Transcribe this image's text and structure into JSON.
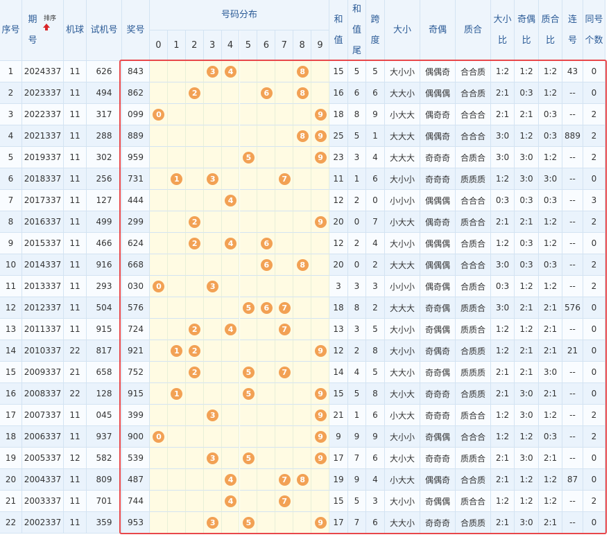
{
  "header": {
    "columns": [
      "序号",
      "期号",
      "机球",
      "试机号",
      "奖号",
      "和值",
      "和值尾",
      "跨度",
      "大小",
      "奇偶",
      "质合",
      "大小比",
      "奇偶比",
      "质合比",
      "连号",
      "同号个数"
    ],
    "sort": "排序",
    "dist_title": "号码分布",
    "digits": [
      "0",
      "1",
      "2",
      "3",
      "4",
      "5",
      "6",
      "7",
      "8",
      "9"
    ]
  },
  "table": {
    "rows": [
      {
        "cells": [
          "1",
          "2024337",
          "11",
          "626",
          "843",
          "15",
          "5",
          "5",
          "大小小",
          "偶偶奇",
          "合合质",
          "1:2",
          "1:2",
          "1:2",
          "43",
          "0"
        ],
        "balls": [
          "3",
          "4",
          "8"
        ]
      },
      {
        "cells": [
          "2",
          "2023337",
          "11",
          "494",
          "862",
          "16",
          "6",
          "6",
          "大大小",
          "偶偶偶",
          "合合质",
          "2:1",
          "0:3",
          "1:2",
          "--",
          "0"
        ],
        "balls": [
          "2",
          "6",
          "8"
        ]
      },
      {
        "cells": [
          "3",
          "2022337",
          "11",
          "317",
          "099",
          "18",
          "8",
          "9",
          "小大大",
          "偶奇奇",
          "合合合",
          "2:1",
          "2:1",
          "0:3",
          "--",
          "2"
        ],
        "balls": [
          "0",
          "9"
        ]
      },
      {
        "cells": [
          "4",
          "2021337",
          "11",
          "288",
          "889",
          "25",
          "5",
          "1",
          "大大大",
          "偶偶奇",
          "合合合",
          "3:0",
          "1:2",
          "0:3",
          "889",
          "2"
        ],
        "balls": [
          "8",
          "9"
        ]
      },
      {
        "cells": [
          "5",
          "2019337",
          "11",
          "302",
          "959",
          "23",
          "3",
          "4",
          "大大大",
          "奇奇奇",
          "合质合",
          "3:0",
          "3:0",
          "1:2",
          "--",
          "2"
        ],
        "balls": [
          "5",
          "9"
        ]
      },
      {
        "cells": [
          "6",
          "2018337",
          "11",
          "256",
          "731",
          "11",
          "1",
          "6",
          "大小小",
          "奇奇奇",
          "质质质",
          "1:2",
          "3:0",
          "3:0",
          "--",
          "0"
        ],
        "balls": [
          "1",
          "3",
          "7"
        ]
      },
      {
        "cells": [
          "7",
          "2017337",
          "11",
          "127",
          "444",
          "12",
          "2",
          "0",
          "小小小",
          "偶偶偶",
          "合合合",
          "0:3",
          "0:3",
          "0:3",
          "--",
          "3"
        ],
        "balls": [
          "4"
        ]
      },
      {
        "cells": [
          "8",
          "2016337",
          "11",
          "499",
          "299",
          "20",
          "0",
          "7",
          "小大大",
          "偶奇奇",
          "质合合",
          "2:1",
          "2:1",
          "1:2",
          "--",
          "2"
        ],
        "balls": [
          "2",
          "9"
        ]
      },
      {
        "cells": [
          "9",
          "2015337",
          "11",
          "466",
          "624",
          "12",
          "2",
          "4",
          "大小小",
          "偶偶偶",
          "合质合",
          "1:2",
          "0:3",
          "1:2",
          "--",
          "0"
        ],
        "balls": [
          "2",
          "4",
          "6"
        ]
      },
      {
        "cells": [
          "10",
          "2014337",
          "11",
          "916",
          "668",
          "20",
          "0",
          "2",
          "大大大",
          "偶偶偶",
          "合合合",
          "3:0",
          "0:3",
          "0:3",
          "--",
          "2"
        ],
        "balls": [
          "6",
          "8"
        ]
      },
      {
        "cells": [
          "11",
          "2013337",
          "11",
          "293",
          "030",
          "3",
          "3",
          "3",
          "小小小",
          "偶奇偶",
          "合质合",
          "0:3",
          "1:2",
          "1:2",
          "--",
          "2"
        ],
        "balls": [
          "0",
          "3"
        ]
      },
      {
        "cells": [
          "12",
          "2012337",
          "11",
          "504",
          "576",
          "18",
          "8",
          "2",
          "大大大",
          "奇奇偶",
          "质质合",
          "3:0",
          "2:1",
          "2:1",
          "576",
          "0"
        ],
        "balls": [
          "5",
          "6",
          "7"
        ]
      },
      {
        "cells": [
          "13",
          "2011337",
          "11",
          "915",
          "724",
          "13",
          "3",
          "5",
          "大小小",
          "奇偶偶",
          "质质合",
          "1:2",
          "1:2",
          "2:1",
          "--",
          "0"
        ],
        "balls": [
          "2",
          "4",
          "7"
        ]
      },
      {
        "cells": [
          "14",
          "2010337",
          "22",
          "817",
          "921",
          "12",
          "2",
          "8",
          "大小小",
          "奇偶奇",
          "合质质",
          "1:2",
          "2:1",
          "2:1",
          "21",
          "0"
        ],
        "balls": [
          "1",
          "2",
          "9"
        ]
      },
      {
        "cells": [
          "15",
          "2009337",
          "21",
          "658",
          "752",
          "14",
          "4",
          "5",
          "大大小",
          "奇奇偶",
          "质质质",
          "2:1",
          "2:1",
          "3:0",
          "--",
          "0"
        ],
        "balls": [
          "2",
          "5",
          "7"
        ]
      },
      {
        "cells": [
          "16",
          "2008337",
          "22",
          "128",
          "915",
          "15",
          "5",
          "8",
          "大小大",
          "奇奇奇",
          "合质质",
          "2:1",
          "3:0",
          "2:1",
          "--",
          "0"
        ],
        "balls": [
          "1",
          "5",
          "9"
        ]
      },
      {
        "cells": [
          "17",
          "2007337",
          "11",
          "045",
          "399",
          "21",
          "1",
          "6",
          "小大大",
          "奇奇奇",
          "质合合",
          "1:2",
          "3:0",
          "1:2",
          "--",
          "2"
        ],
        "balls": [
          "3",
          "9"
        ]
      },
      {
        "cells": [
          "18",
          "2006337",
          "11",
          "937",
          "900",
          "9",
          "9",
          "9",
          "大小小",
          "奇偶偶",
          "合合合",
          "1:2",
          "1:2",
          "0:3",
          "--",
          "2"
        ],
        "balls": [
          "0",
          "9"
        ]
      },
      {
        "cells": [
          "19",
          "2005337",
          "12",
          "582",
          "539",
          "17",
          "7",
          "6",
          "大小大",
          "奇奇奇",
          "质质合",
          "2:1",
          "3:0",
          "2:1",
          "--",
          "0"
        ],
        "balls": [
          "3",
          "5",
          "9"
        ]
      },
      {
        "cells": [
          "20",
          "2004337",
          "11",
          "809",
          "487",
          "19",
          "9",
          "4",
          "小大大",
          "偶偶奇",
          "合合质",
          "2:1",
          "1:2",
          "1:2",
          "87",
          "0"
        ],
        "balls": [
          "4",
          "7",
          "8"
        ]
      },
      {
        "cells": [
          "21",
          "2003337",
          "11",
          "701",
          "744",
          "15",
          "5",
          "3",
          "大小小",
          "奇偶偶",
          "质合合",
          "1:2",
          "1:2",
          "1:2",
          "--",
          "2"
        ],
        "balls": [
          "4",
          "7"
        ]
      },
      {
        "cells": [
          "22",
          "2002337",
          "11",
          "359",
          "953",
          "17",
          "7",
          "6",
          "大大小",
          "奇奇奇",
          "合质质",
          "2:1",
          "3:0",
          "2:1",
          "--",
          "0"
        ],
        "balls": [
          "3",
          "5",
          "9"
        ]
      }
    ]
  }
}
